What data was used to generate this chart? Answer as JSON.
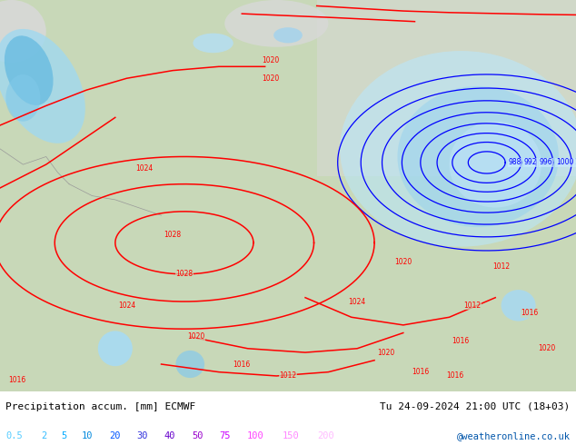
{
  "title_left": "Precipitation accum. [mm] ECMWF",
  "title_right": "Tu 24-09-2024 21:00 UTC (18+03)",
  "credit": "@weatheronline.co.uk",
  "legend_values": [
    "0.5",
    "2",
    "5",
    "10",
    "20",
    "30",
    "40",
    "50",
    "75",
    "100",
    "150",
    "200"
  ],
  "legend_colors": [
    "#55ccff",
    "#33bbff",
    "#00aaff",
    "#0088dd",
    "#0055ff",
    "#3333dd",
    "#6600cc",
    "#9900cc",
    "#cc00ff",
    "#ff44ff",
    "#ff88ff",
    "#ffbbff"
  ],
  "bg_color": "#e8e8e8",
  "map_bg": "#c8d8b8",
  "bottom_bar_color": "#ffffff",
  "fig_width": 6.34,
  "fig_height": 4.9,
  "dpi": 100
}
